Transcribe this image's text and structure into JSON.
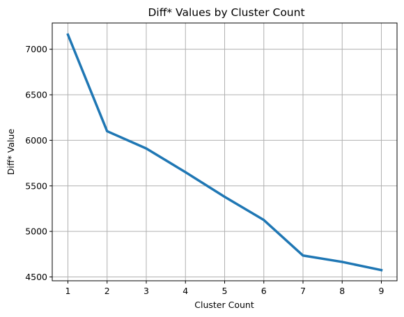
{
  "chart_data": {
    "type": "line",
    "title": "Diff* Values by Cluster Count",
    "xlabel": "Cluster Count",
    "ylabel": "Diff* Value",
    "x": [
      1,
      2,
      3,
      4,
      5,
      6,
      7,
      8,
      9
    ],
    "series": [
      {
        "values": [
          7160,
          6100,
          5910,
          5650,
          5380,
          5125,
          4735,
          4665,
          4575
        ]
      }
    ],
    "xlim": [
      0.6,
      9.4
    ],
    "ylim": [
      4458,
      7288
    ],
    "xticks": [
      1,
      2,
      3,
      4,
      5,
      6,
      7,
      8,
      9
    ],
    "yticks": [
      4500,
      5000,
      5500,
      6000,
      6500,
      7000
    ],
    "grid": true,
    "line_color": "#1f77b4"
  }
}
